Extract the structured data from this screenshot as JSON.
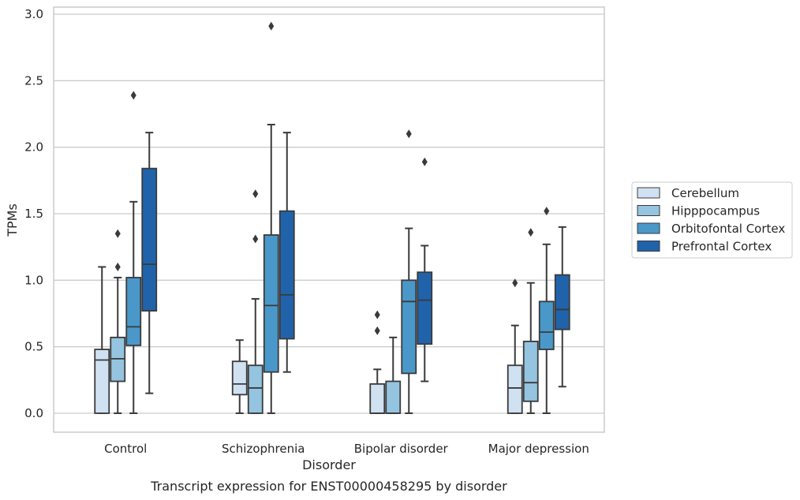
{
  "chart_data": {
    "type": "box",
    "caption": "Transcript expression for ENST00000458295 by disorder",
    "xlabel": "Disorder",
    "ylabel": "TPMs",
    "ylim": [
      -0.14,
      3.06
    ],
    "yticks": [
      "0.0",
      "0.5",
      "1.0",
      "1.5",
      "2.0",
      "2.5",
      "3.0"
    ],
    "grid": "horizontal",
    "legend_position": "right",
    "categories": [
      "Control",
      "Schizophrenia",
      "Bipolar disorder",
      "Major depression"
    ],
    "series": [
      {
        "name": "Cerebellum",
        "color": "#d0e1f2",
        "boxes": [
          {
            "whisker_low": 0.0,
            "q1": 0.0,
            "median": 0.4,
            "q3": 0.48,
            "whisker_high": 1.1,
            "outliers": []
          },
          {
            "whisker_low": 0.0,
            "q1": 0.14,
            "median": 0.22,
            "q3": 0.39,
            "whisker_high": 0.55,
            "outliers": []
          },
          {
            "whisker_low": 0.0,
            "q1": 0.0,
            "median": 0.0,
            "q3": 0.22,
            "whisker_high": 0.33,
            "outliers": [
              0.62,
              0.74
            ]
          },
          {
            "whisker_low": 0.0,
            "q1": 0.0,
            "median": 0.19,
            "q3": 0.36,
            "whisker_high": 0.66,
            "outliers": [
              0.98
            ]
          }
        ]
      },
      {
        "name": "Hipppocampus",
        "color": "#94c4df",
        "boxes": [
          {
            "whisker_low": 0.0,
            "q1": 0.24,
            "median": 0.41,
            "q3": 0.57,
            "whisker_high": 1.02,
            "outliers": [
              1.1,
              1.35
            ]
          },
          {
            "whisker_low": 0.0,
            "q1": 0.0,
            "median": 0.19,
            "q3": 0.36,
            "whisker_high": 0.86,
            "outliers": [
              1.31,
              1.65
            ]
          },
          {
            "whisker_low": 0.0,
            "q1": 0.0,
            "median": 0.0,
            "q3": 0.24,
            "whisker_high": 0.57,
            "outliers": []
          },
          {
            "whisker_low": 0.0,
            "q1": 0.09,
            "median": 0.23,
            "q3": 0.54,
            "whisker_high": 0.98,
            "outliers": [
              1.36
            ]
          }
        ]
      },
      {
        "name": "Orbitofontal Cortex",
        "color": "#4a98c9",
        "boxes": [
          {
            "whisker_low": 0.0,
            "q1": 0.51,
            "median": 0.65,
            "q3": 1.02,
            "whisker_high": 1.59,
            "outliers": [
              2.39
            ]
          },
          {
            "whisker_low": 0.0,
            "q1": 0.31,
            "median": 0.81,
            "q3": 1.34,
            "whisker_high": 2.17,
            "outliers": [
              2.91
            ]
          },
          {
            "whisker_low": 0.0,
            "q1": 0.3,
            "median": 0.84,
            "q3": 1.0,
            "whisker_high": 1.39,
            "outliers": [
              2.1
            ]
          },
          {
            "whisker_low": 0.0,
            "q1": 0.48,
            "median": 0.61,
            "q3": 0.84,
            "whisker_high": 1.27,
            "outliers": [
              1.52
            ]
          }
        ]
      },
      {
        "name": "Prefrontal Cortex",
        "color": "#2163aa",
        "boxes": [
          {
            "whisker_low": 0.15,
            "q1": 0.77,
            "median": 1.12,
            "q3": 1.84,
            "whisker_high": 2.11,
            "outliers": []
          },
          {
            "whisker_low": 0.31,
            "q1": 0.56,
            "median": 0.89,
            "q3": 1.52,
            "whisker_high": 2.11,
            "outliers": []
          },
          {
            "whisker_low": 0.24,
            "q1": 0.52,
            "median": 0.85,
            "q3": 1.06,
            "whisker_high": 1.26,
            "outliers": [
              1.89
            ]
          },
          {
            "whisker_low": 0.2,
            "q1": 0.63,
            "median": 0.78,
            "q3": 1.04,
            "whisker_high": 1.4,
            "outliers": []
          }
        ]
      }
    ]
  }
}
